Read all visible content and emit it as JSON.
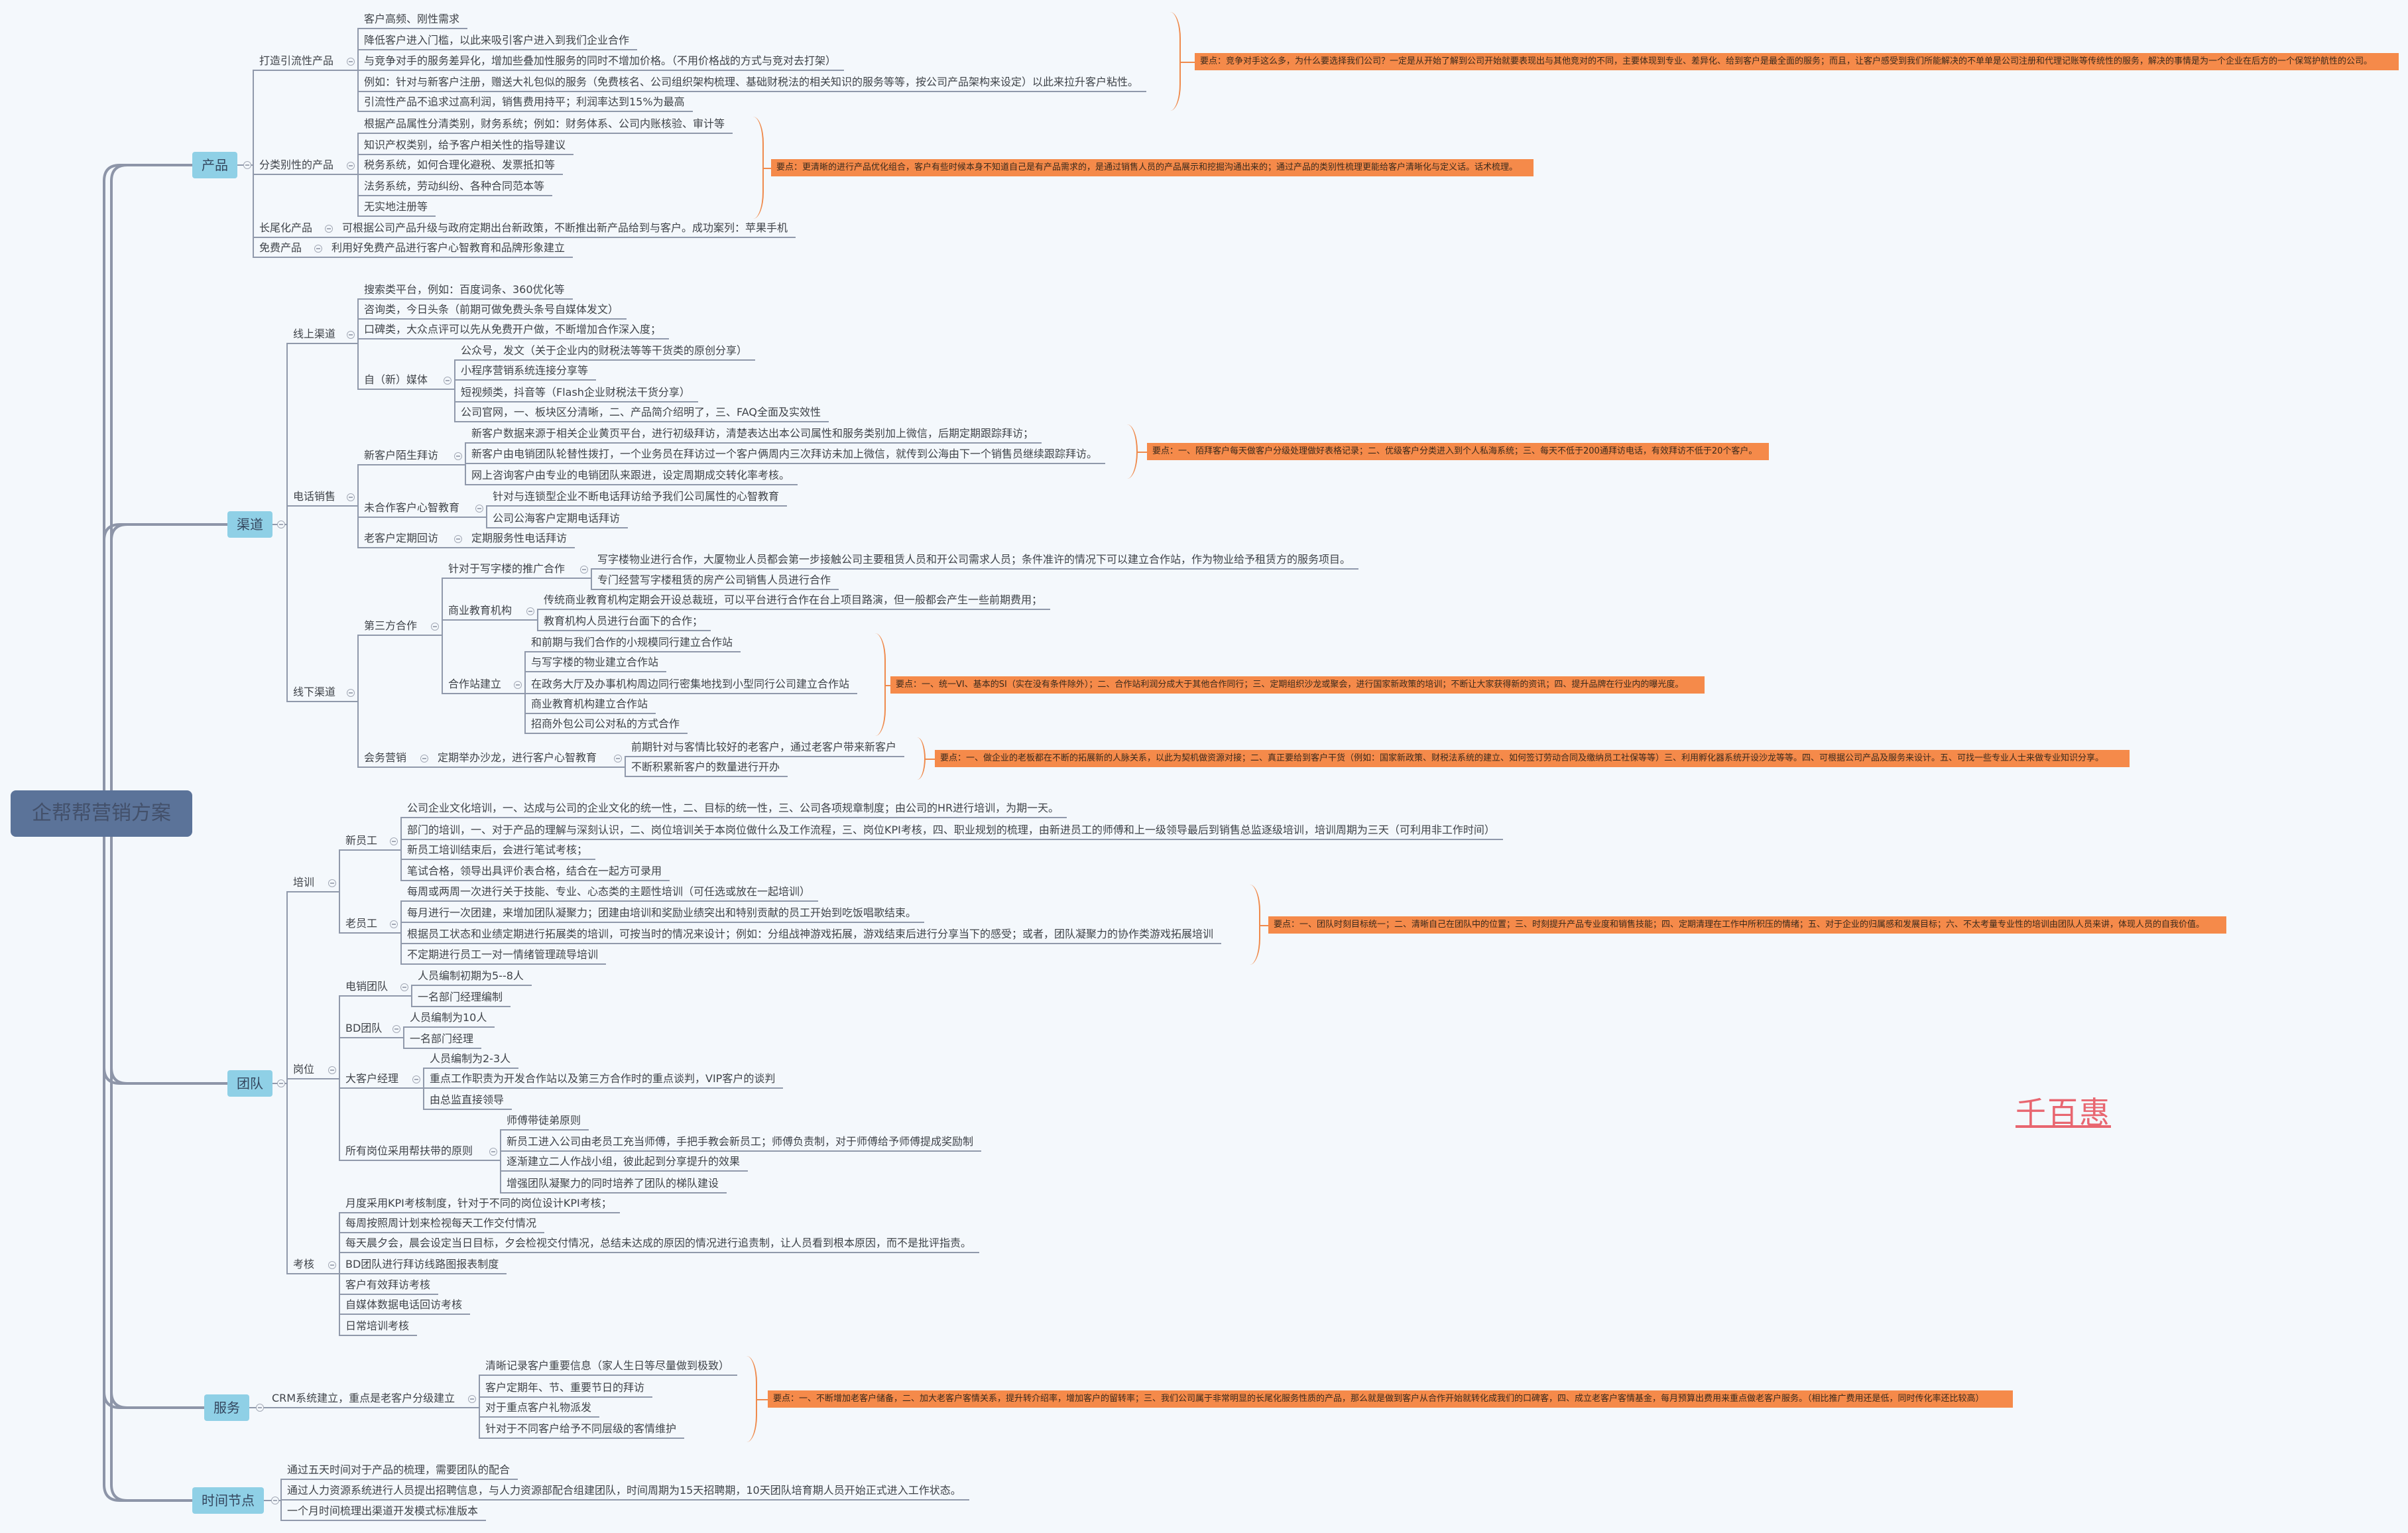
{
  "title": "企帮帮营销方案",
  "watermark": "千百惠",
  "colors": {
    "root": "#5b7399",
    "category": "#8fd0e6",
    "note": "#f58a4a",
    "bracket": "#ef8a4c",
    "line": "#9099ab",
    "watermark": "#e86670"
  },
  "tree": {
    "children": [
      {
        "text": "产品",
        "children": [
          {
            "text": "打造引流性产品",
            "note": "要点：竞争对手这么多，为什么要选择我们公司？一定是从开始了解到公司开始就要表现出与其他竞对的不同，主要体现到专业、差异化、给到客户是最全面的服务；而且，让客户感受到我们所能解决的不单单是公司注册和代理记账等传统性的服务，解决的事情是为一个企业在后方的一个保驾护航性的公司。",
            "children": [
              {
                "text": "客户高频、刚性需求"
              },
              {
                "text": "降低客户进入门槛，以此来吸引客户进入到我们企业合作"
              },
              {
                "text": "与竞争对手的服务差异化，增加些叠加性服务的同时不增加价格。（不用价格战的方式与竞对去打架）"
              },
              {
                "text": "例如：针对与新客户注册，赠送大礼包似的服务（免费核名、公司组织架构梳理、基础财税法的相关知识的服务等等，按公司产品架构来设定）以此来拉升客户粘性。"
              },
              {
                "text": "引流性产品不追求过高利润，销售费用持平；利润率达到15%为最高"
              }
            ]
          },
          {
            "text": "分类别性的产品",
            "note": "要点：更清晰的进行产品优化组合，客户有些时候本身不知道自己是有产品需求的，是通过销售人员的产品展示和挖掘沟通出来的；通过产品的类别性梳理更能给客户清晰化与定义话。话术梳理。",
            "children": [
              {
                "text": "根据产品属性分清类别，财务系统；例如：财务体系、公司内账核验、审计等"
              },
              {
                "text": "知识产权类别，给予客户相关性的指导建议"
              },
              {
                "text": "税务系统，如何合理化避税、发票抵扣等"
              },
              {
                "text": "法务系统，劳动纠纷、各种合同范本等"
              },
              {
                "text": "无实地注册等"
              }
            ]
          },
          {
            "text": "长尾化产品",
            "children": [
              {
                "text": "可根据公司产品升级与政府定期出台新政策，不断推出新产品给到与客户。成功案列：苹果手机"
              }
            ]
          },
          {
            "text": "免费产品",
            "children": [
              {
                "text": "利用好免费产品进行客户心智教育和品牌形象建立"
              }
            ]
          }
        ]
      },
      {
        "text": "渠道",
        "children": [
          {
            "text": "线上渠道",
            "children": [
              {
                "text": "搜索类平台，例如：百度词条、360优化等"
              },
              {
                "text": "咨询类，今日头条（前期可做免费头条号自媒体发文）"
              },
              {
                "text": "口碑类，大众点评可以先从免费开户做，不断增加合作深入度；"
              },
              {
                "text": "自（新）媒体",
                "children": [
                  {
                    "text": "公众号，发文（关于企业内的财税法等等干货类的原创分享）"
                  },
                  {
                    "text": "小程序营销系统连接分享等"
                  },
                  {
                    "text": "短视频类，抖音等（Flash企业财税法干货分享）"
                  },
                  {
                    "text": "公司官网，一、板块区分清晰，二、产品简介绍明了，三、FAQ全面及实效性"
                  }
                ]
              }
            ]
          },
          {
            "text": "电话销售",
            "children": [
              {
                "text": "新客户陌生拜访",
                "note": "要点：一、陌拜客户每天做客户分级处理做好表格记录；二、优级客户分类进入到个人私海系统；三、每天不低于200通拜访电话，有效拜访不低于20个客户。",
                "children": [
                  {
                    "text": "新客户数据来源于相关企业黄页平台，进行初级拜访，清楚表达出本公司属性和服务类别加上微信，后期定期跟踪拜访；"
                  },
                  {
                    "text": "新客户由电销团队轮替性拨打，一个业务员在拜访过一个客户俩周内三次拜访未加上微信，就传到公海由下一个销售员继续跟踪拜访。"
                  },
                  {
                    "text": "网上咨询客户由专业的电销团队来跟进，设定周期成交转化率考核。"
                  }
                ]
              },
              {
                "text": "未合作客户心智教育",
                "children": [
                  {
                    "text": "针对与连锁型企业不断电话拜访给予我们公司属性的心智教育"
                  },
                  {
                    "text": "公司公海客户定期电话拜访"
                  }
                ]
              },
              {
                "text": "老客户定期回访",
                "children": [
                  {
                    "text": "定期服务性电话拜访"
                  }
                ]
              }
            ]
          },
          {
            "text": "线下渠道",
            "children": [
              {
                "text": "第三方合作",
                "children": [
                  {
                    "text": "针对于写字楼的推广合作",
                    "children": [
                      {
                        "text": "写字楼物业进行合作，大厦物业人员都会第一步接触公司主要租赁人员和开公司需求人员；条件准许的情况下可以建立合作站，作为物业给予租赁方的服务项目。"
                      },
                      {
                        "text": "专门经营写字楼租赁的房产公司销售人员进行合作"
                      }
                    ]
                  },
                  {
                    "text": "商业教育机构",
                    "children": [
                      {
                        "text": "传统商业教育机构定期会开设总裁班，可以平台进行合作在台上项目路演，但一般都会产生一些前期费用；"
                      },
                      {
                        "text": "教育机构人员进行台面下的合作；"
                      }
                    ]
                  },
                  {
                    "text": "合作站建立",
                    "note": "要点：一、统一VI、基本的SI（实在没有条件除外）；二、合作站利润分成大于其他合作同行；三、定期组织沙龙或聚会，进行国家新政策的培训；不断让大家获得新的资讯；四、提升品牌在行业内的曝光度。",
                    "children": [
                      {
                        "text": "和前期与我们合作的小规模同行建立合作站"
                      },
                      {
                        "text": "与写字楼的物业建立合作站"
                      },
                      {
                        "text": "在政务大厅及办事机构周边同行密集地找到小型同行公司建立合作站"
                      },
                      {
                        "text": "商业教育机构建立合作站"
                      },
                      {
                        "text": "招商外包公司公对私的方式合作"
                      }
                    ]
                  }
                ]
              },
              {
                "text": "会务营销",
                "children": [
                  {
                    "text": "定期举办沙龙，进行客户心智教育",
                    "note": "要点：一、做企业的老板都在不断的拓展新的人脉关系，以此为契机做资源对接；二、真正要给到客户干货（例如：国家新政策、财税法系统的建立、如何签订劳动合同及缴纳员工社保等等）三、利用孵化器系统开设沙龙等等。四、可根据公司产品及服务来设计。五、可找一些专业人士来做专业知识分享。",
                    "children": [
                      {
                        "text": "前期针对与客情比较好的老客户，通过老客户带来新客户"
                      },
                      {
                        "text": "不断积累新客户的数量进行开办"
                      }
                    ]
                  }
                ]
              }
            ]
          }
        ]
      },
      {
        "text": "团队",
        "children": [
          {
            "text": "培训",
            "children": [
              {
                "text": "新员工",
                "children": [
                  {
                    "text": "公司企业文化培训，一、达成与公司的企业文化的统一性，二、目标的统一性，三、公司各项规章制度；由公司的HR进行培训，为期一天。"
                  },
                  {
                    "text": "部门的培训，一、对于产品的理解与深刻认识，二、岗位培训关于本岗位做什么及工作流程，三、岗位KPI考核，四、职业规划的梳理，由新进员工的师傅和上一级领导最后到销售总监逐级培训，培训周期为三天（可利用非工作时间）"
                  },
                  {
                    "text": "新员工培训结束后，会进行笔试考核；"
                  },
                  {
                    "text": "笔试合格，领导出具评价表合格，结合在一起方可录用"
                  }
                ]
              },
              {
                "text": "老员工",
                "note": "要点：一、团队时刻目标统一；二、清晰自己在团队中的位置；三、时刻提升产品专业度和销售技能；四、定期清理在工作中所积压的情绪；五、对于企业的归属感和发展目标；六、不太考量专业性的培训由团队人员来讲，体现人员的自我价值。",
                "children": [
                  {
                    "text": "每周或两周一次进行关于技能、专业、心态类的主题性培训（可任选或放在一起培训）"
                  },
                  {
                    "text": "每月进行一次团建，来增加团队凝聚力；团建由培训和奖励业绩突出和特别贡献的员工开始到吃饭唱歌结束。"
                  },
                  {
                    "text": "根据员工状态和业绩定期进行拓展类的培训，可按当时的情况来设计；例如：分组战神游戏拓展，游戏结束后进行分享当下的感受；或者，团队凝聚力的协作类游戏拓展培训"
                  },
                  {
                    "text": "不定期进行员工一对一情绪管理疏导培训"
                  }
                ]
              }
            ]
          },
          {
            "text": "岗位",
            "children": [
              {
                "text": "电销团队",
                "children": [
                  {
                    "text": "人员编制初期为5--8人"
                  },
                  {
                    "text": "一名部门经理编制"
                  }
                ]
              },
              {
                "text": "BD团队",
                "children": [
                  {
                    "text": "人员编制为10人"
                  },
                  {
                    "text": "一名部门经理"
                  }
                ]
              },
              {
                "text": "大客户经理",
                "children": [
                  {
                    "text": "人员编制为2-3人"
                  },
                  {
                    "text": "重点工作职责为开发合作站以及第三方合作时的重点谈判，VIP客户的谈判"
                  },
                  {
                    "text": "由总监直接领导"
                  }
                ]
              },
              {
                "text": "所有岗位采用帮扶带的原则",
                "children": [
                  {
                    "text": "师傅带徒弟原则"
                  },
                  {
                    "text": "新员工进入公司由老员工充当师傅，手把手教会新员工；师傅负责制，对于师傅给予师傅提成奖励制"
                  },
                  {
                    "text": "逐渐建立二人作战小组，彼此起到分享提升的效果"
                  },
                  {
                    "text": "增强团队凝聚力的同时培养了团队的梯队建设"
                  }
                ]
              }
            ]
          },
          {
            "text": "考核",
            "children": [
              {
                "text": "月度采用KPI考核制度，针对于不同的岗位设计KPI考核；"
              },
              {
                "text": "每周按照周计划来检视每天工作交付情况"
              },
              {
                "text": "每天晨夕会，晨会设定当日目标，夕会检视交付情况，总结未达成的原因的情况进行追责制，让人员看到根本原因，而不是批评指责。"
              },
              {
                "text": "BD团队进行拜访线路图报表制度"
              },
              {
                "text": "客户有效拜访考核"
              },
              {
                "text": "自媒体数据电话回访考核"
              },
              {
                "text": "日常培训考核"
              }
            ]
          }
        ]
      },
      {
        "text": "服务",
        "children": [
          {
            "text": "CRM系统建立，重点是老客户分级建立",
            "note": "要点：一、不断增加老客户储备，二、加大老客户客情关系，提升转介绍率，增加客户的留转率；三、我们公司属于非常明显的长尾化服务性质的产品，那么就是做到客户从合作开始就转化成我们的口碑客，四、成立老客户客情基金，每月预算出费用来重点做老客户服务。（相比推广费用还是低，同时传化率还比较高）",
            "children": [
              {
                "text": "清晰记录客户重要信息（家人生日等尽量做到极致）"
              },
              {
                "text": "客户定期年、节、重要节日的拜访"
              },
              {
                "text": "对于重点客户礼物派发"
              },
              {
                "text": "针对于不同客户给予不同层级的客情维护"
              }
            ]
          }
        ]
      },
      {
        "text": "时间节点",
        "children": [
          {
            "text": "通过五天时间对于产品的梳理，需要团队的配合"
          },
          {
            "text": "通过人力资源系统进行人员提出招聘信息，与人力资源部配合组建团队，时间周期为15天招聘期，10天团队培育期人员开始正式进入工作状态。"
          },
          {
            "text": "一个月时间梳理出渠道开发模式标准版本"
          }
        ]
      }
    ]
  }
}
